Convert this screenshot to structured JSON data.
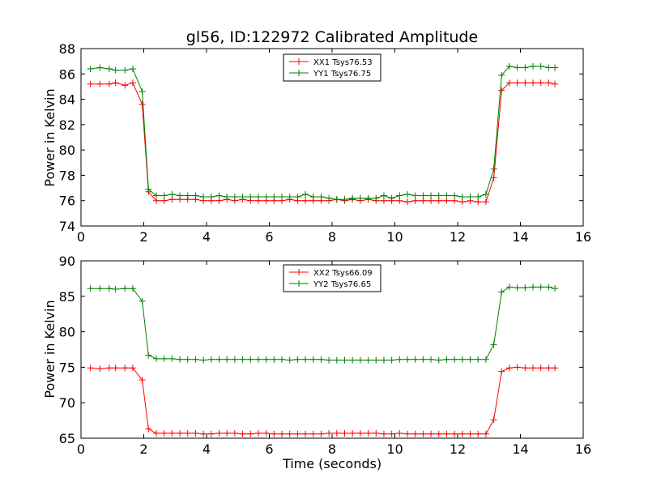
{
  "chart_data": [
    {
      "type": "line",
      "title": "gl56, ID:122972 Calibrated Amplitude",
      "xlabel": "",
      "ylabel": "Power in Kelvin",
      "xlim": [
        0,
        16
      ],
      "ylim": [
        74,
        88
      ],
      "xticks": [
        0,
        2,
        4,
        6,
        8,
        10,
        12,
        14,
        16
      ],
      "yticks": [
        74,
        76,
        78,
        80,
        82,
        84,
        86,
        88
      ],
      "grid": false,
      "legend_position": "top-center",
      "x": [
        0.3,
        0.6,
        0.9,
        1.1,
        1.4,
        1.65,
        1.95,
        2.15,
        2.4,
        2.65,
        2.9,
        3.15,
        3.4,
        3.65,
        3.9,
        4.15,
        4.4,
        4.65,
        4.9,
        5.15,
        5.4,
        5.65,
        5.9,
        6.15,
        6.4,
        6.65,
        6.9,
        7.15,
        7.4,
        7.65,
        7.9,
        8.15,
        8.4,
        8.65,
        8.9,
        9.15,
        9.4,
        9.65,
        9.9,
        10.15,
        10.4,
        10.65,
        10.9,
        11.15,
        11.4,
        11.65,
        11.9,
        12.15,
        12.4,
        12.65,
        12.9,
        13.15,
        13.4,
        13.65,
        13.9,
        14.15,
        14.4,
        14.65,
        14.9,
        15.1
      ],
      "series": [
        {
          "name": "XX1 Tsys76.53",
          "color": "#ff0000",
          "values": [
            85.2,
            85.2,
            85.2,
            85.3,
            85.1,
            85.3,
            83.6,
            76.7,
            76.0,
            76.0,
            76.1,
            76.1,
            76.1,
            76.1,
            76.0,
            76.0,
            76.0,
            76.1,
            76.0,
            76.1,
            76.0,
            76.0,
            76.0,
            76.0,
            76.0,
            76.1,
            76.0,
            76.0,
            76.0,
            76.0,
            76.0,
            76.1,
            76.0,
            76.1,
            76.0,
            76.1,
            76.0,
            76.0,
            76.0,
            76.0,
            75.9,
            76.0,
            76.0,
            76.0,
            76.0,
            76.0,
            76.0,
            75.9,
            76.0,
            75.9,
            75.9,
            77.8,
            84.7,
            85.3,
            85.3,
            85.3,
            85.3,
            85.3,
            85.3,
            85.2
          ]
        },
        {
          "name": "YY1 Tsys76.75",
          "color": "#008000",
          "values": [
            86.4,
            86.5,
            86.4,
            86.3,
            86.3,
            86.4,
            84.6,
            76.9,
            76.4,
            76.4,
            76.5,
            76.4,
            76.4,
            76.4,
            76.3,
            76.3,
            76.4,
            76.3,
            76.3,
            76.3,
            76.3,
            76.3,
            76.3,
            76.3,
            76.3,
            76.3,
            76.3,
            76.5,
            76.3,
            76.3,
            76.2,
            76.1,
            76.1,
            76.2,
            76.2,
            76.2,
            76.2,
            76.4,
            76.2,
            76.4,
            76.5,
            76.4,
            76.4,
            76.4,
            76.4,
            76.4,
            76.4,
            76.3,
            76.3,
            76.3,
            76.5,
            78.5,
            85.9,
            86.6,
            86.5,
            86.5,
            86.6,
            86.6,
            86.5,
            86.5
          ]
        }
      ]
    },
    {
      "type": "line",
      "title": "",
      "xlabel": "Time (seconds)",
      "ylabel": "Power in Kelvin",
      "xlim": [
        0,
        16
      ],
      "ylim": [
        65,
        90
      ],
      "xticks": [
        0,
        2,
        4,
        6,
        8,
        10,
        12,
        14,
        16
      ],
      "yticks": [
        65,
        70,
        75,
        80,
        85,
        90
      ],
      "grid": false,
      "legend_position": "top-center",
      "x": [
        0.3,
        0.6,
        0.9,
        1.1,
        1.4,
        1.65,
        1.95,
        2.15,
        2.4,
        2.65,
        2.9,
        3.15,
        3.4,
        3.65,
        3.9,
        4.15,
        4.4,
        4.65,
        4.9,
        5.15,
        5.4,
        5.65,
        5.9,
        6.15,
        6.4,
        6.65,
        6.9,
        7.15,
        7.4,
        7.65,
        7.9,
        8.15,
        8.4,
        8.65,
        8.9,
        9.15,
        9.4,
        9.65,
        9.9,
        10.15,
        10.4,
        10.65,
        10.9,
        11.15,
        11.4,
        11.65,
        11.9,
        12.15,
        12.4,
        12.65,
        12.9,
        13.15,
        13.4,
        13.65,
        13.9,
        14.15,
        14.4,
        14.65,
        14.9,
        15.1
      ],
      "series": [
        {
          "name": "XX2 Tsys66.09",
          "color": "#ff0000",
          "values": [
            74.9,
            74.8,
            74.9,
            74.9,
            74.9,
            74.9,
            73.2,
            66.3,
            65.7,
            65.7,
            65.7,
            65.7,
            65.7,
            65.7,
            65.6,
            65.6,
            65.7,
            65.7,
            65.7,
            65.6,
            65.6,
            65.7,
            65.7,
            65.6,
            65.6,
            65.6,
            65.6,
            65.6,
            65.6,
            65.6,
            65.7,
            65.7,
            65.7,
            65.7,
            65.7,
            65.7,
            65.7,
            65.6,
            65.6,
            65.7,
            65.6,
            65.6,
            65.6,
            65.6,
            65.6,
            65.6,
            65.6,
            65.6,
            65.6,
            65.6,
            65.6,
            67.6,
            74.4,
            74.9,
            75.0,
            74.9,
            74.9,
            74.9,
            74.9,
            74.9
          ]
        },
        {
          "name": "YY2 Tsys76.65",
          "color": "#008000",
          "values": [
            86.1,
            86.1,
            86.1,
            86.0,
            86.1,
            86.1,
            84.3,
            76.7,
            76.2,
            76.2,
            76.2,
            76.1,
            76.1,
            76.1,
            76.0,
            76.1,
            76.1,
            76.1,
            76.1,
            76.1,
            76.1,
            76.1,
            76.1,
            76.1,
            76.1,
            76.0,
            76.1,
            76.1,
            76.1,
            76.1,
            76.0,
            76.0,
            76.0,
            76.0,
            76.0,
            76.0,
            76.0,
            76.0,
            76.0,
            76.1,
            76.1,
            76.1,
            76.1,
            76.1,
            76.0,
            76.1,
            76.1,
            76.1,
            76.1,
            76.1,
            76.1,
            78.2,
            85.6,
            86.3,
            86.2,
            86.2,
            86.3,
            86.3,
            86.3,
            86.1
          ]
        }
      ]
    }
  ]
}
